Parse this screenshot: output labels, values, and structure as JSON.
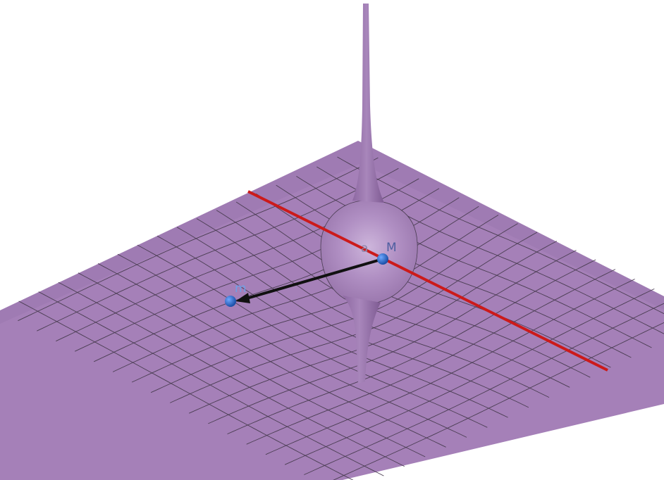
{
  "scene": {
    "surface_color": "#a580b8",
    "surface_dark": "#8f6aa3",
    "surface_light": "#c3a6d2",
    "grid_color": "#4a3d52",
    "line_color": "#cc1a1a",
    "vector_color": "#111111",
    "point_color": "#1f5fbf"
  },
  "points": {
    "M": {
      "label": "M",
      "label_color": "#4d5ea0"
    },
    "m": {
      "label": "m",
      "label_color": "#6fa0e6"
    }
  },
  "vector": {
    "label": "a",
    "label_color": "#8a83a8"
  }
}
